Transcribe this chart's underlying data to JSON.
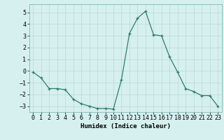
{
  "x": [
    0,
    1,
    2,
    3,
    4,
    5,
    6,
    7,
    8,
    9,
    10,
    11,
    12,
    13,
    14,
    15,
    16,
    17,
    18,
    19,
    20,
    21,
    22,
    23
  ],
  "y": [
    -0.1,
    -0.6,
    -1.5,
    -1.5,
    -1.6,
    -2.4,
    -2.8,
    -3.0,
    -3.2,
    -3.2,
    -3.25,
    -0.75,
    3.2,
    4.5,
    5.1,
    3.1,
    3.0,
    1.2,
    -0.1,
    -1.5,
    -1.75,
    -2.1,
    -2.1,
    -3.0
  ],
  "line_color": "#2e7d6e",
  "marker": "+",
  "marker_size": 3.5,
  "marker_lw": 0.9,
  "line_width": 0.9,
  "bg_color": "#d6f0ef",
  "grid_color": "#b8d8d4",
  "xlabel": "Humidex (Indice chaleur)",
  "ylim": [
    -3.5,
    5.7
  ],
  "xlim": [
    -0.5,
    23.5
  ],
  "yticks": [
    -3,
    -2,
    -1,
    0,
    1,
    2,
    3,
    4,
    5
  ],
  "xticks": [
    0,
    1,
    2,
    3,
    4,
    5,
    6,
    7,
    8,
    9,
    10,
    11,
    12,
    13,
    14,
    15,
    16,
    17,
    18,
    19,
    20,
    21,
    22,
    23
  ],
  "xlabel_fontsize": 6.5,
  "tick_fontsize": 6.0,
  "spine_color": "#7ab8b0"
}
